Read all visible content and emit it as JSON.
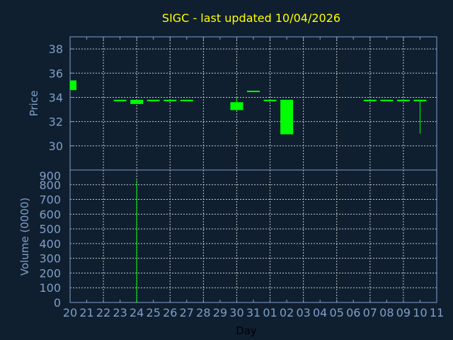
{
  "chart_data": [
    {
      "type": "candlestick",
      "title": "SIGC - last updated 10/04/2026",
      "ylabel": "Price",
      "ylim": [
        28,
        39
      ],
      "yticks": [
        30,
        32,
        34,
        36,
        38
      ],
      "grid": true,
      "colors": {
        "background": "#0f1f30",
        "title": "#ffff00",
        "axis": "#7f9fc7",
        "grid": "#c8c8c8",
        "candle": "#00ff00"
      },
      "categories": [
        "20",
        "21",
        "22",
        "23",
        "24",
        "25",
        "26",
        "27",
        "28",
        "29",
        "30",
        "31",
        "01",
        "02",
        "03",
        "04",
        "05",
        "06",
        "07",
        "08",
        "09",
        "10",
        "11"
      ],
      "candles": [
        {
          "day": "20",
          "open": 35.4,
          "high": 35.4,
          "low": 34.6,
          "close": 34.6
        },
        {
          "day": "23",
          "open": 33.8,
          "high": 33.8,
          "low": 33.8,
          "close": 33.8
        },
        {
          "day": "24",
          "open": 33.8,
          "high": 33.8,
          "low": 33.45,
          "close": 33.45
        },
        {
          "day": "25",
          "open": 33.8,
          "high": 33.8,
          "low": 33.8,
          "close": 33.8
        },
        {
          "day": "26",
          "open": 33.8,
          "high": 33.8,
          "low": 33.8,
          "close": 33.8
        },
        {
          "day": "27",
          "open": 33.8,
          "high": 33.8,
          "low": 33.8,
          "close": 33.8
        },
        {
          "day": "30",
          "open": 33.6,
          "high": 34.0,
          "low": 32.95,
          "close": 32.95
        },
        {
          "day": "31",
          "open": 34.55,
          "high": 34.55,
          "low": 34.55,
          "close": 34.55
        },
        {
          "day": "01",
          "open": 33.8,
          "high": 33.8,
          "low": 33.8,
          "close": 33.8
        },
        {
          "day": "02",
          "open": 33.8,
          "high": 33.8,
          "low": 30.95,
          "close": 30.95
        },
        {
          "day": "07",
          "open": 33.8,
          "high": 33.8,
          "low": 33.8,
          "close": 33.8
        },
        {
          "day": "08",
          "open": 33.8,
          "high": 33.8,
          "low": 33.8,
          "close": 33.8
        },
        {
          "day": "09",
          "open": 33.8,
          "high": 33.8,
          "low": 33.8,
          "close": 33.8
        },
        {
          "day": "10",
          "open": 33.8,
          "high": 33.8,
          "low": 31.0,
          "close": 33.8
        }
      ]
    },
    {
      "type": "bar",
      "xlabel": "Day",
      "ylabel": "Volume (0000)",
      "ylim": [
        0,
        900
      ],
      "yticks": [
        0,
        100,
        200,
        300,
        400,
        500,
        600,
        700,
        800,
        900
      ],
      "grid": true,
      "categories": [
        "20",
        "21",
        "22",
        "23",
        "24",
        "25",
        "26",
        "27",
        "28",
        "29",
        "30",
        "31",
        "01",
        "02",
        "03",
        "04",
        "05",
        "06",
        "07",
        "08",
        "09",
        "10",
        "11"
      ],
      "bars": [
        {
          "day": "24",
          "value": 830
        }
      ]
    }
  ]
}
